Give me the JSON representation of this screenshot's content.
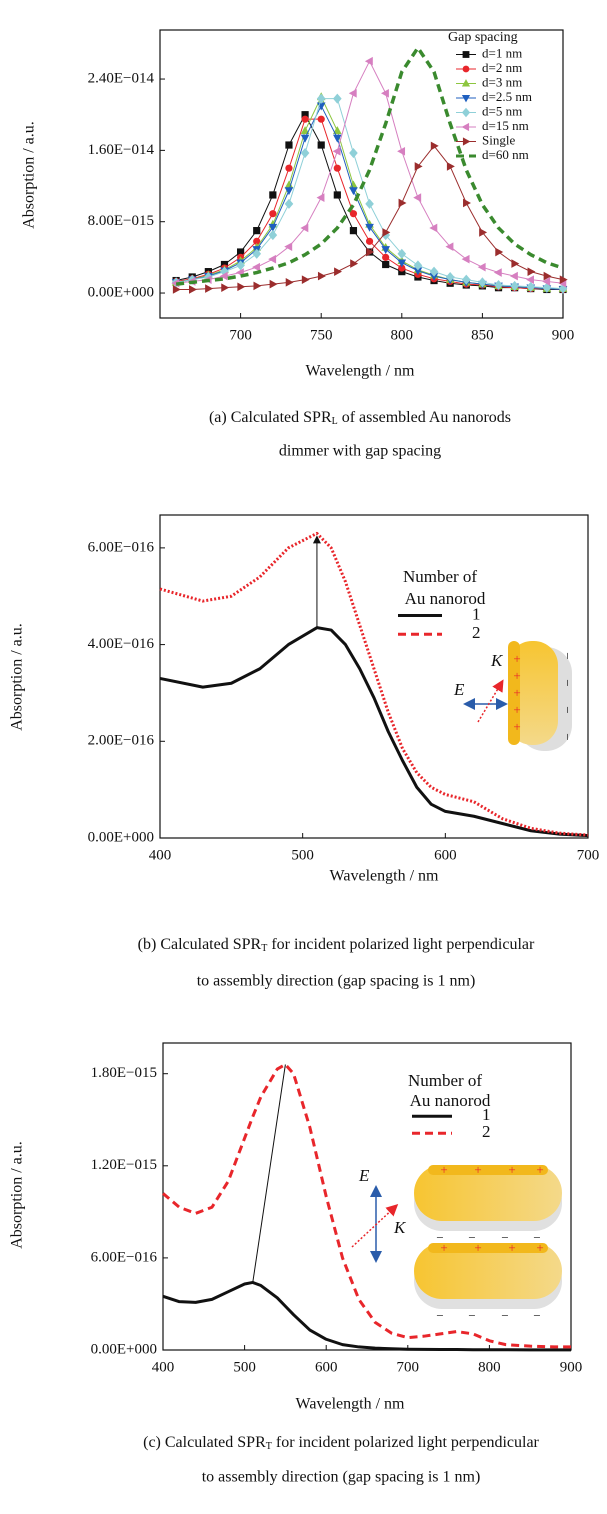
{
  "chart_data": [
    {
      "type": "line",
      "xlabel": "Wavelength / nm",
      "ylabel": "Absorption / a.u.",
      "x": [
        660,
        670,
        680,
        690,
        700,
        710,
        720,
        730,
        740,
        750,
        760,
        770,
        780,
        790,
        800,
        810,
        820,
        830,
        840,
        850,
        860,
        870,
        880,
        890,
        900
      ],
      "xlim": [
        650,
        900
      ],
      "xticks": [
        700,
        750,
        800,
        850,
        900
      ],
      "ylim": [
        -2.8e-15,
        2.95e-14
      ],
      "yticks": [
        {
          "value": 0,
          "label": "0.00E+000"
        },
        {
          "value": 8e-15,
          "label": "8.00E−015"
        },
        {
          "value": 1.6e-14,
          "label": "1.60E−014"
        },
        {
          "value": 2.4e-14,
          "label": "2.40E−014"
        }
      ],
      "legend_title": "Gap spacing",
      "series": [
        {
          "name": "d=1 nm",
          "color": "#111111",
          "marker": "square",
          "values": [
            1.4e-15,
            1.8e-15,
            2.4e-15,
            3.2e-15,
            4.6e-15,
            7e-15,
            1.1e-14,
            1.66e-14,
            2e-14,
            1.66e-14,
            1.1e-14,
            7e-15,
            4.6e-15,
            3.2e-15,
            2.4e-15,
            1.8e-15,
            1.4e-15,
            1.1e-15,
            9e-16,
            8e-16,
            6e-16,
            6e-16,
            5e-16,
            4e-16,
            4e-16
          ]
        },
        {
          "name": "d=2 nm",
          "color": "#e8262b",
          "marker": "circle",
          "values": [
            1.3e-15,
            1.6e-15,
            2.1e-15,
            2.8e-15,
            4e-15,
            5.8e-15,
            8.9e-15,
            1.4e-14,
            1.95e-14,
            1.95e-14,
            1.4e-14,
            8.9e-15,
            5.8e-15,
            4e-15,
            2.8e-15,
            2.1e-15,
            1.6e-15,
            1.3e-15,
            1e-15,
            9e-16,
            7e-16,
            6e-16,
            5e-16,
            5e-16,
            4e-16
          ]
        },
        {
          "name": "d=3 nm",
          "color": "#8dc63f",
          "marker": "triangle-up",
          "values": [
            1.2e-15,
            1.5e-15,
            2e-15,
            2.6e-15,
            3.6e-15,
            5.1e-15,
            7.7e-15,
            1.21e-14,
            1.82e-14,
            2.2e-14,
            1.82e-14,
            1.21e-14,
            7.7e-15,
            5.1e-15,
            3.6e-15,
            2.6e-15,
            2e-15,
            1.5e-15,
            1.2e-15,
            1e-15,
            8e-16,
            7e-16,
            6e-16,
            5e-16,
            5e-16
          ]
        },
        {
          "name": "d=2.5 nm",
          "color": "#1f5fbf",
          "marker": "triangle-down",
          "values": [
            1.2e-15,
            1.5e-15,
            1.9e-15,
            2.5e-15,
            3.4e-15,
            4.9e-15,
            7.4e-15,
            1.15e-14,
            1.74e-14,
            2.1e-14,
            1.74e-14,
            1.15e-14,
            7.4e-15,
            4.9e-15,
            3.4e-15,
            2.5e-15,
            1.9e-15,
            1.5e-15,
            1.2e-15,
            1e-15,
            8e-16,
            7e-16,
            6e-16,
            5e-16,
            4e-16
          ]
        },
        {
          "name": "d=5 nm",
          "color": "#8fd0d8",
          "marker": "diamond",
          "values": [
            1.2e-15,
            1.5e-15,
            1.8e-15,
            2.4e-15,
            3.1e-15,
            4.4e-15,
            6.5e-15,
            1e-14,
            1.57e-14,
            2.18e-14,
            2.18e-14,
            1.57e-14,
            1e-14,
            6.5e-15,
            4.4e-15,
            3.1e-15,
            2.4e-15,
            1.8e-15,
            1.5e-15,
            1.2e-15,
            9e-16,
            8e-16,
            7e-16,
            6e-16,
            5e-16
          ]
        },
        {
          "name": "d=15 nm",
          "color": "#d67fc0",
          "marker": "triangle-left",
          "values": [
            1.1e-15,
            1.3e-15,
            1.5e-15,
            1.9e-15,
            2.3e-15,
            2.9e-15,
            3.8e-15,
            5.2e-15,
            7.3e-15,
            1.07e-14,
            1.59e-14,
            2.24e-14,
            2.6e-14,
            2.24e-14,
            1.59e-14,
            1.07e-14,
            7.3e-15,
            5.2e-15,
            3.8e-15,
            2.9e-15,
            2.3e-15,
            1.9e-15,
            1.5e-15,
            1.3e-15,
            1.1e-15
          ]
        },
        {
          "name": "Single",
          "color": "#9b2d2d",
          "marker": "triangle-right",
          "values": [
            4e-16,
            4e-16,
            5e-16,
            6e-16,
            7e-16,
            8e-16,
            1e-15,
            1.2e-15,
            1.5e-15,
            1.9e-15,
            2.4e-15,
            3.3e-15,
            4.6e-15,
            6.8e-15,
            1.01e-14,
            1.42e-14,
            1.65e-14,
            1.42e-14,
            1.01e-14,
            6.8e-15,
            4.6e-15,
            3.3e-15,
            2.4e-15,
            1.9e-15,
            1.5e-15
          ]
        },
        {
          "name": "d=60 nm",
          "color": "#3a8a2e",
          "dash": "dashed",
          "values": [
            1e-15,
            1.2e-15,
            1.4e-15,
            1.6e-15,
            1.9e-15,
            2.3e-15,
            2.8e-15,
            3.4e-15,
            4.3e-15,
            5.5e-15,
            7.3e-15,
            9.9e-15,
            1.38e-14,
            1.9e-14,
            2.48e-14,
            2.75e-14,
            2.48e-14,
            1.9e-14,
            1.38e-14,
            9.9e-15,
            7.3e-15,
            5.5e-15,
            4.3e-15,
            3.4e-15,
            2.8e-15
          ]
        }
      ],
      "caption": {
        "start": "(a) Calculated SPR",
        "subscript": "L",
        "end": " of assembled Au nanorods",
        "line2": "dimmer with gap spacing"
      }
    },
    {
      "type": "line",
      "xlabel": "Wavelength / nm",
      "ylabel": "Absorption / a.u.",
      "x": [
        400,
        430,
        450,
        470,
        490,
        510,
        520,
        530,
        540,
        550,
        560,
        570,
        580,
        590,
        600,
        620,
        640,
        660,
        680,
        700
      ],
      "xlim": [
        400,
        700
      ],
      "xticks": [
        400,
        500,
        600,
        700
      ],
      "ylim": [
        0,
        6.68e-16
      ],
      "yticks": [
        {
          "value": 0,
          "label": "0.00E+000"
        },
        {
          "value": 2e-16,
          "label": "2.00E−016"
        },
        {
          "value": 4e-16,
          "label": "4.00E−016"
        },
        {
          "value": 6e-16,
          "label": "6.00E−016"
        }
      ],
      "legend_title": [
        "Number of",
        "Au nanorod"
      ],
      "series": [
        {
          "name": "1",
          "color": "#111111",
          "values": [
            3.3e-16,
            3.12e-16,
            3.2e-16,
            3.5e-16,
            4e-16,
            4.35e-16,
            4.3e-16,
            4e-16,
            3.5e-16,
            2.9e-16,
            2.2e-16,
            1.6e-16,
            1.05e-16,
            7e-17,
            5.5e-17,
            4.5e-17,
            3e-17,
            1.5e-17,
            8e-18,
            5e-18
          ]
        },
        {
          "name": "2",
          "color": "#e8262b",
          "dash": "dotted",
          "values": [
            5.15e-16,
            4.9e-16,
            5e-16,
            5.4e-16,
            6e-16,
            6.3e-16,
            6e-16,
            5.3e-16,
            4.4e-16,
            3.5e-16,
            2.6e-16,
            1.85e-16,
            1.35e-16,
            1.05e-16,
            9e-17,
            7.5e-17,
            4e-17,
            2e-17,
            1e-17,
            6e-18
          ]
        }
      ],
      "annotations": [
        "E",
        "K",
        "+",
        "−"
      ],
      "caption": {
        "start": "(b) Calculated SPR",
        "subscript": "T",
        "end": "  for incident polarized light perpendicular",
        "line2": "to assembly direction (gap spacing is 1 nm)"
      }
    },
    {
      "type": "line",
      "xlabel": "Wavelength / nm",
      "ylabel": "Absorption / a.u.",
      "x": [
        400,
        420,
        440,
        460,
        480,
        500,
        510,
        520,
        540,
        550,
        560,
        580,
        600,
        620,
        640,
        660,
        680,
        700,
        720,
        740,
        760,
        780,
        800,
        820,
        850,
        880,
        900
      ],
      "xlim": [
        400,
        900
      ],
      "xticks": [
        400,
        500,
        600,
        700,
        800,
        900
      ],
      "ylim": [
        0,
        2e-15
      ],
      "yticks": [
        {
          "value": 0,
          "label": "0.00E+000"
        },
        {
          "value": 6e-16,
          "label": "6.00E−016"
        },
        {
          "value": 1.2e-15,
          "label": "1.20E−015"
        },
        {
          "value": 1.8e-15,
          "label": "1.80E−015"
        }
      ],
      "legend_title": [
        "Number of",
        "Au nanorod"
      ],
      "series": [
        {
          "name": "1",
          "color": "#111111",
          "values": [
            3.5e-16,
            3.15e-16,
            3.1e-16,
            3.3e-16,
            3.8e-16,
            4.3e-16,
            4.4e-16,
            4.2e-16,
            3.4e-16,
            2.85e-16,
            2.3e-16,
            1.3e-16,
            7e-17,
            3.5e-17,
            2e-17,
            1.2e-17,
            8e-18,
            5e-18,
            4e-18,
            3e-18,
            3e-18,
            2e-18,
            2e-18,
            2e-18,
            1e-18,
            1e-18,
            1e-18
          ]
        },
        {
          "name": "2",
          "color": "#e8262b",
          "dash": "dashed",
          "values": [
            1.02e-15,
            9.3e-16,
            8.9e-16,
            9.3e-16,
            1.1e-15,
            1.38e-15,
            1.52e-15,
            1.65e-15,
            1.83e-15,
            1.86e-15,
            1.8e-15,
            1.45e-15,
            1e-15,
            6e-16,
            3.3e-16,
            1.8e-16,
            1.1e-16,
            8e-17,
            9e-17,
            1.05e-16,
            1.2e-16,
            1.05e-16,
            6e-17,
            3.5e-17,
            2.5e-17,
            2e-17,
            2e-17
          ]
        }
      ],
      "annotations": [
        "E",
        "K",
        "+",
        "−"
      ],
      "caption": {
        "start": "(c) Calculated SPR",
        "subscript": "T",
        "end": "  for incident polarized light perpendicular",
        "line2": "to assembly direction (gap spacing is 1 nm)"
      }
    }
  ]
}
